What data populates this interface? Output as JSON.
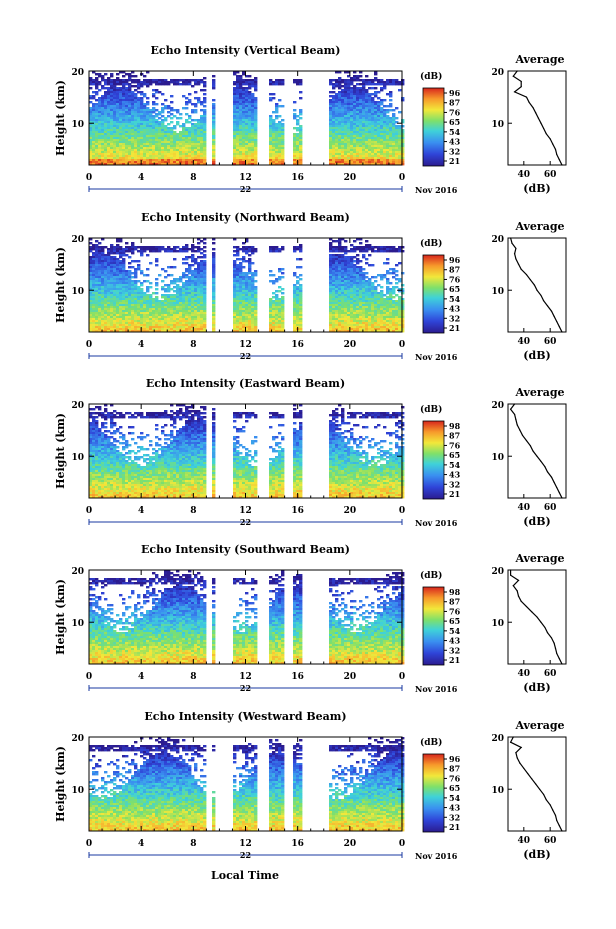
{
  "x_label": "Local Time",
  "x_unit_note": "Nov 2016",
  "colorbar_unit": "(dB)",
  "colorbar_ticks": [],
  "chart_data": [
    {
      "type": "heatmap",
      "title": "Echo Intensity (Vertical Beam)",
      "ylabel": "Height (km)",
      "xlabel": "",
      "x_ticks": [
        "0",
        "4",
        "8",
        "12",
        "16",
        "20",
        "0"
      ],
      "y_ticks": [
        "10",
        "20"
      ],
      "date_label": "22",
      "xlim": [
        0,
        24
      ],
      "ylim": [
        2,
        20
      ],
      "data_gaps_hours": [
        [
          8.8,
          9.3
        ],
        [
          9.6,
          10.9
        ],
        [
          12.8,
          13.6
        ],
        [
          14.9,
          15.6
        ],
        [
          16.3,
          18.2
        ]
      ],
      "colorbar_ticks": [
        "96",
        "87",
        "76",
        "65",
        "54",
        "43",
        "32",
        "21"
      ],
      "colorbar_unit": "(dB)",
      "average_profile": {
        "title": "Average",
        "xlabel": "(dB)",
        "x_ticks": [
          "40",
          "60"
        ],
        "y_ticks": [
          "10",
          "20"
        ],
        "xlim": [
          28,
          72
        ],
        "height_km": [
          20,
          19,
          18,
          17,
          16,
          15,
          14,
          13,
          12,
          11,
          10,
          9,
          8,
          7,
          6,
          5,
          4,
          3,
          2
        ],
        "db": [
          35,
          32,
          38,
          38,
          33,
          42,
          44,
          47,
          49,
          51,
          53,
          55,
          57,
          60,
          62,
          64,
          65,
          67,
          69
        ]
      }
    },
    {
      "type": "heatmap",
      "title": "Echo Intensity (Northward Beam)",
      "ylabel": "Height (km)",
      "xlabel": "",
      "x_ticks": [
        "0",
        "4",
        "8",
        "12",
        "16",
        "20",
        "0"
      ],
      "y_ticks": [
        "10",
        "20"
      ],
      "date_label": "22",
      "xlim": [
        0,
        24
      ],
      "ylim": [
        2,
        20
      ],
      "data_gaps_hours": [
        [
          8.8,
          9.3
        ],
        [
          9.6,
          10.9
        ],
        [
          12.8,
          13.6
        ],
        [
          14.9,
          15.6
        ],
        [
          16.3,
          18.2
        ]
      ],
      "colorbar_ticks": [
        "96",
        "87",
        "76",
        "65",
        "54",
        "43",
        "32",
        "21"
      ],
      "colorbar_unit": "(dB)",
      "average_profile": {
        "title": "Average",
        "xlabel": "(dB)",
        "x_ticks": [
          "40",
          "60"
        ],
        "y_ticks": [
          "10",
          "20"
        ],
        "xlim": [
          28,
          72
        ],
        "height_km": [
          20,
          19,
          18,
          17,
          16,
          15,
          14,
          13,
          12,
          11,
          10,
          9,
          8,
          7,
          6,
          5,
          4,
          3,
          2
        ],
        "db": [
          30,
          31,
          34,
          33,
          34,
          36,
          38,
          42,
          45,
          48,
          50,
          53,
          55,
          58,
          61,
          63,
          65,
          67,
          69
        ]
      }
    },
    {
      "type": "heatmap",
      "title": "Echo Intensity (Eastward Beam)",
      "ylabel": "Height (km)",
      "xlabel": "",
      "x_ticks": [
        "0",
        "4",
        "8",
        "12",
        "16",
        "20",
        "0"
      ],
      "y_ticks": [
        "10",
        "20"
      ],
      "date_label": "22",
      "xlim": [
        0,
        24
      ],
      "ylim": [
        2,
        20
      ],
      "data_gaps_hours": [
        [
          8.8,
          9.3
        ],
        [
          9.6,
          10.9
        ],
        [
          12.8,
          13.6
        ],
        [
          14.9,
          15.6
        ],
        [
          16.3,
          18.2
        ]
      ],
      "colorbar_ticks": [
        "98",
        "87",
        "76",
        "65",
        "54",
        "43",
        "32",
        "21"
      ],
      "colorbar_unit": "(dB)",
      "average_profile": {
        "title": "Average",
        "xlabel": "(dB)",
        "x_ticks": [
          "40",
          "60"
        ],
        "y_ticks": [
          "10",
          "20"
        ],
        "xlim": [
          28,
          72
        ],
        "height_km": [
          20,
          19,
          18,
          17,
          16,
          15,
          14,
          13,
          12,
          11,
          10,
          9,
          8,
          7,
          6,
          5,
          4,
          3,
          2
        ],
        "db": [
          33,
          30,
          33,
          34,
          35,
          37,
          39,
          42,
          45,
          47,
          50,
          53,
          56,
          58,
          61,
          63,
          65,
          67,
          69
        ]
      }
    },
    {
      "type": "heatmap",
      "title": "Echo Intensity (Southward Beam)",
      "ylabel": "Height (km)",
      "xlabel": "",
      "x_ticks": [
        "0",
        "4",
        "8",
        "12",
        "16",
        "20",
        "0"
      ],
      "y_ticks": [
        "10",
        "20"
      ],
      "date_label": "22",
      "xlim": [
        0,
        24
      ],
      "ylim": [
        2,
        20
      ],
      "data_gaps_hours": [
        [
          8.8,
          9.3
        ],
        [
          9.6,
          10.9
        ],
        [
          12.8,
          13.6
        ],
        [
          14.9,
          15.6
        ],
        [
          16.3,
          18.2
        ]
      ],
      "colorbar_ticks": [
        "98",
        "87",
        "76",
        "65",
        "54",
        "43",
        "32",
        "21"
      ],
      "colorbar_unit": "(dB)",
      "average_profile": {
        "title": "Average",
        "xlabel": "(dB)",
        "x_ticks": [
          "40",
          "60"
        ],
        "y_ticks": [
          "10",
          "20"
        ],
        "xlim": [
          28,
          72
        ],
        "height_km": [
          20,
          19,
          18,
          17,
          16,
          15,
          14,
          13,
          12,
          11,
          10,
          9,
          8,
          7,
          6,
          5,
          4,
          3,
          2
        ],
        "db": [
          30,
          30,
          36,
          32,
          35,
          36,
          38,
          42,
          46,
          50,
          53,
          56,
          58,
          61,
          63,
          64,
          65,
          67,
          69
        ]
      }
    },
    {
      "type": "heatmap",
      "title": "Echo Intensity (Westward Beam)",
      "ylabel": "Height (km)",
      "xlabel": "Local Time",
      "x_ticks": [
        "0",
        "4",
        "8",
        "12",
        "16",
        "20",
        "0"
      ],
      "y_ticks": [
        "10",
        "20"
      ],
      "date_label": "22",
      "xlim": [
        0,
        24
      ],
      "ylim": [
        2,
        20
      ],
      "data_gaps_hours": [
        [
          8.8,
          9.3
        ],
        [
          9.6,
          10.9
        ],
        [
          12.8,
          13.6
        ],
        [
          14.9,
          15.6
        ],
        [
          16.3,
          18.2
        ]
      ],
      "colorbar_ticks": [
        "96",
        "87",
        "76",
        "65",
        "54",
        "43",
        "32",
        "21"
      ],
      "colorbar_unit": "(dB)",
      "average_profile": {
        "title": "Average",
        "xlabel": "(dB)",
        "x_ticks": [
          "40",
          "60"
        ],
        "y_ticks": [
          "10",
          "20"
        ],
        "xlim": [
          28,
          72
        ],
        "height_km": [
          20,
          19,
          18,
          17,
          16,
          15,
          14,
          13,
          12,
          11,
          10,
          9,
          8,
          7,
          6,
          5,
          4,
          3,
          2
        ],
        "db": [
          32,
          30,
          38,
          34,
          35,
          37,
          40,
          43,
          46,
          49,
          52,
          55,
          57,
          60,
          62,
          64,
          65,
          67,
          69
        ]
      }
    }
  ]
}
